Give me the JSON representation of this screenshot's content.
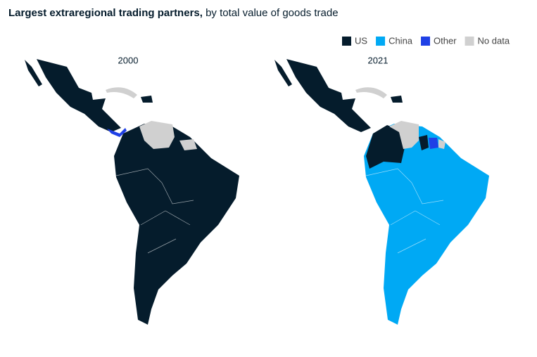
{
  "title": {
    "bold": "Largest extraregional trading partners,",
    "rest": "by total value of goods trade"
  },
  "legend": [
    {
      "name": "US",
      "color": "#051c2c"
    },
    {
      "name": "China",
      "color": "#00a9f4"
    },
    {
      "name": "Other",
      "color": "#1f40e6"
    },
    {
      "name": "No data",
      "color": "#d0d0d0"
    }
  ],
  "maps": [
    {
      "label": "2000"
    },
    {
      "label": "2021"
    }
  ]
}
